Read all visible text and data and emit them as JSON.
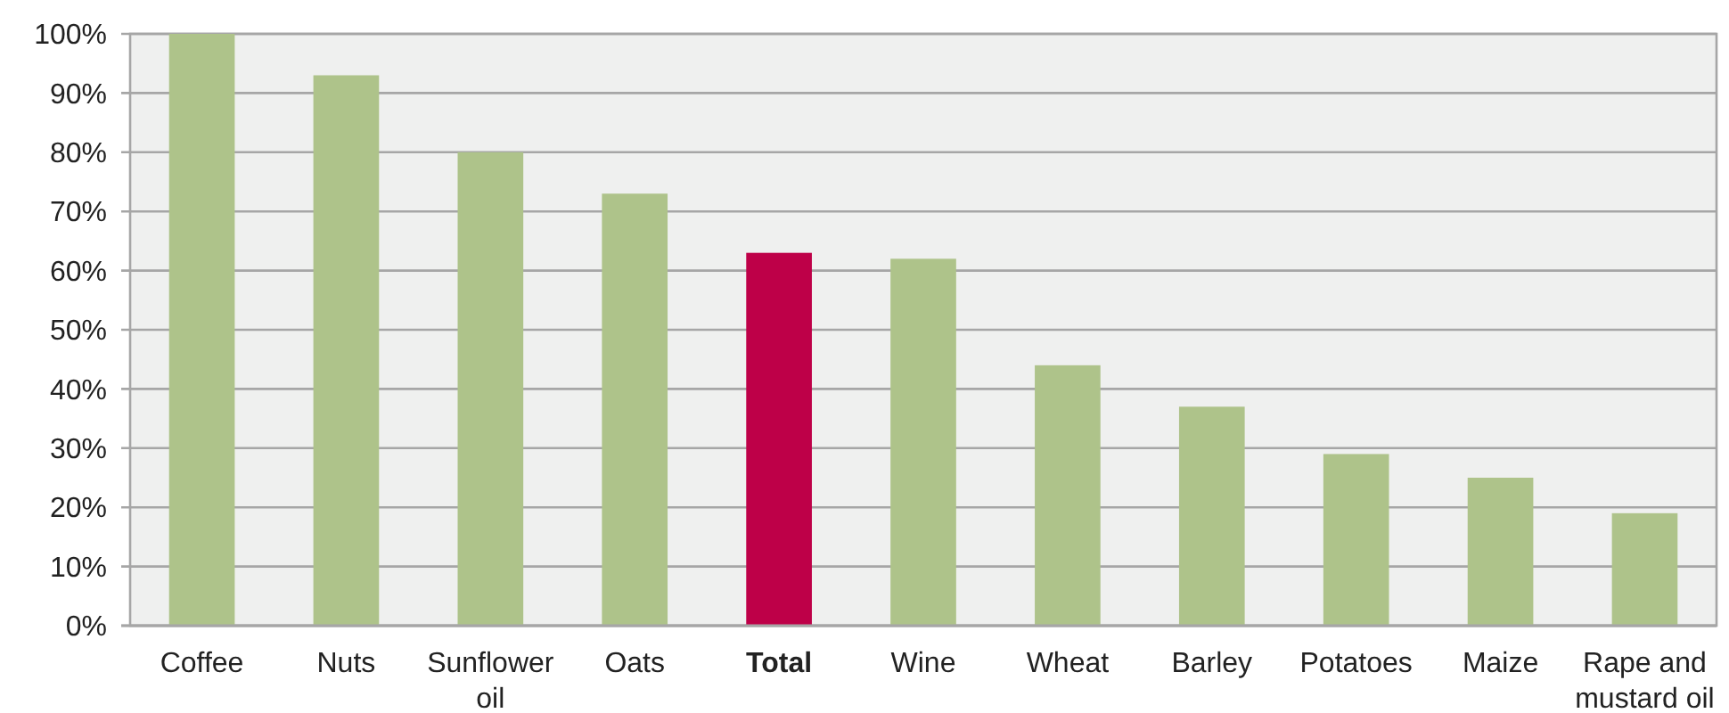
{
  "chart_data": {
    "type": "bar",
    "categories": [
      "Coffee",
      "Nuts",
      "Sunflower oil",
      "Oats",
      "Total",
      "Wine",
      "Wheat",
      "Barley",
      "Potatoes",
      "Maize",
      "Rape and mustard oil"
    ],
    "values": [
      100,
      93,
      80,
      73,
      63,
      62,
      44,
      37,
      29,
      25,
      19
    ],
    "colors": [
      "#aec38a",
      "#aec38a",
      "#aec38a",
      "#aec38a",
      "#be0048",
      "#aec38a",
      "#aec38a",
      "#aec38a",
      "#aec38a",
      "#aec38a",
      "#aec38a"
    ],
    "ylim": [
      0,
      100
    ],
    "yticks": [
      {
        "value": 0,
        "label": "0%"
      },
      {
        "value": 10,
        "label": "10%"
      },
      {
        "value": 20,
        "label": "20%"
      },
      {
        "value": 30,
        "label": "30%"
      },
      {
        "value": 40,
        "label": "40%"
      },
      {
        "value": 50,
        "label": "50%"
      },
      {
        "value": 60,
        "label": "60%"
      },
      {
        "value": 70,
        "label": "70%"
      },
      {
        "value": 80,
        "label": "80%"
      },
      {
        "value": 90,
        "label": "90%"
      },
      {
        "value": 100,
        "label": "100%"
      }
    ],
    "grid": "y"
  }
}
